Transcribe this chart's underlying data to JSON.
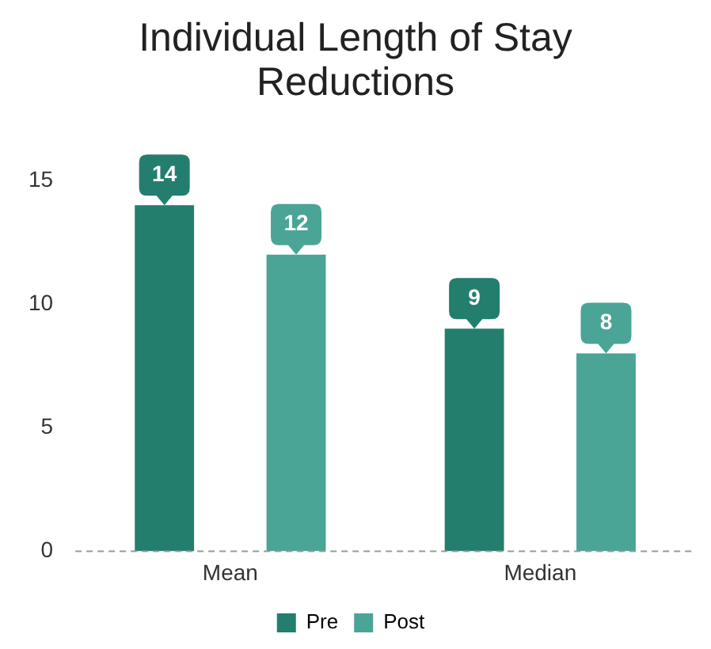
{
  "chart_data": {
    "type": "bar",
    "title": "Individual Length of Stay Reductions",
    "categories": [
      "Mean",
      "Median"
    ],
    "series": [
      {
        "name": "Pre",
        "color": "#237e6e",
        "values": [
          14,
          9
        ]
      },
      {
        "name": "Post",
        "color": "#4aa596",
        "values": [
          12,
          8
        ]
      }
    ],
    "ylim": [
      0,
      15
    ],
    "yticks": [
      0,
      5,
      10,
      15
    ],
    "grid": false,
    "legend": "bottom",
    "data_labels": true
  }
}
